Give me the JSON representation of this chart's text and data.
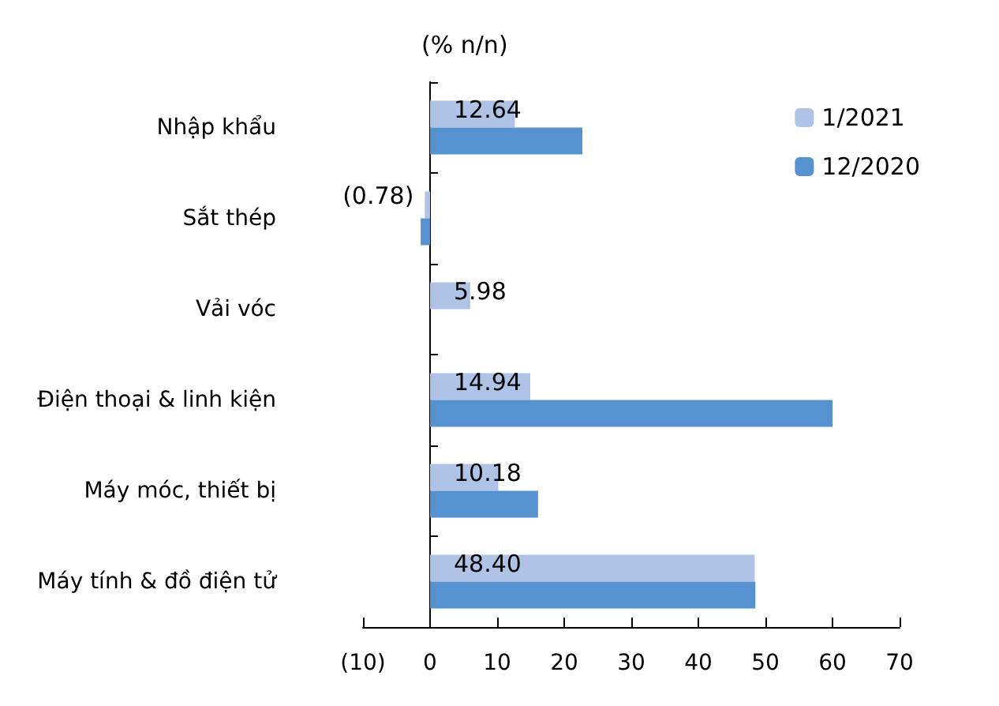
{
  "chart_data": {
    "type": "bar",
    "orientation": "horizontal",
    "xlabel": "(% n/n)",
    "categories": [
      "Nhập khẩu",
      "Sắt thép",
      "Vải vóc",
      "Điện thoại & linh kiện",
      "Máy móc, thiết bị",
      "Máy tính & đồ điện tử"
    ],
    "series": [
      {
        "name": "1/2021",
        "color": "#aec3e6",
        "values": [
          12.64,
          -0.78,
          5.98,
          14.94,
          10.18,
          48.4
        ],
        "value_labels": [
          "12.64",
          "(0.78)",
          "5.98",
          "14.94",
          "10.18",
          "48.40"
        ]
      },
      {
        "name": "12/2020",
        "color": "#5592cf",
        "values": [
          22.7,
          -1.4,
          null,
          60,
          16.1,
          48.5
        ]
      }
    ],
    "xlim": [
      -10,
      70
    ],
    "xticks": [
      {
        "value": -10,
        "label": "(10)"
      },
      0,
      10,
      20,
      30,
      40,
      50,
      60,
      70
    ],
    "legend": "top right"
  }
}
